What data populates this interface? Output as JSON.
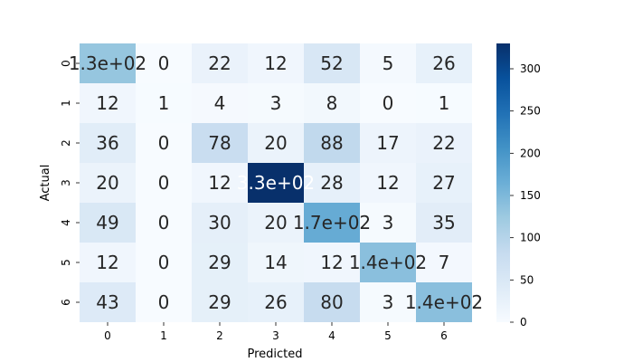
{
  "chart_data": {
    "type": "heatmap",
    "title": "",
    "xlabel": "Predicted",
    "ylabel": "Actual",
    "x_categories": [
      "0",
      "1",
      "2",
      "3",
      "4",
      "5",
      "6"
    ],
    "y_categories": [
      "0",
      "1",
      "2",
      "3",
      "4",
      "5",
      "6"
    ],
    "values": [
      [
        130,
        0,
        22,
        12,
        52,
        5,
        26
      ],
      [
        12,
        1,
        4,
        3,
        8,
        0,
        1
      ],
      [
        36,
        0,
        78,
        20,
        88,
        17,
        22
      ],
      [
        20,
        0,
        12,
        330,
        28,
        12,
        27
      ],
      [
        49,
        0,
        30,
        20,
        170,
        3,
        35
      ],
      [
        12,
        0,
        29,
        14,
        12,
        140,
        7
      ],
      [
        43,
        0,
        29,
        26,
        80,
        3,
        140
      ]
    ],
    "annotations": [
      [
        "1.3e+02",
        "0",
        "22",
        "12",
        "52",
        "5",
        "26"
      ],
      [
        "12",
        "1",
        "4",
        "3",
        "8",
        "0",
        "1"
      ],
      [
        "36",
        "0",
        "78",
        "20",
        "88",
        "17",
        "22"
      ],
      [
        "20",
        "0",
        "12",
        "3.3e+02",
        "28",
        "12",
        "27"
      ],
      [
        "49",
        "0",
        "30",
        "20",
        "1.7e+02",
        "3",
        "35"
      ],
      [
        "12",
        "0",
        "29",
        "14",
        "12",
        "1.4e+02",
        "7"
      ],
      [
        "43",
        "0",
        "29",
        "26",
        "80",
        "3",
        "1.4e+02"
      ]
    ],
    "colormap": "Blues",
    "colorbar": {
      "vmin": 0,
      "vmax": 330,
      "ticks": [
        0,
        50,
        100,
        150,
        200,
        250,
        300
      ]
    },
    "grid": false
  }
}
